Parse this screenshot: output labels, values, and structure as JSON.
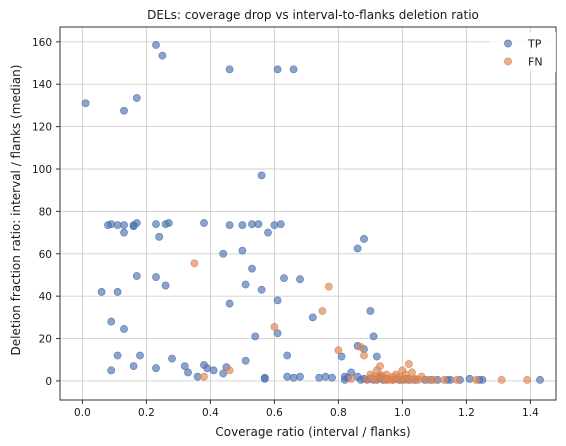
{
  "chart_data": {
    "type": "scatter",
    "title": "DELs: coverage drop vs interval-to-flanks deletion ratio",
    "xlabel": "Coverage ratio (interval / flanks)",
    "ylabel": "Deletion fraction ratio: interval / flanks (median)",
    "xlim": [
      -0.07,
      1.48
    ],
    "ylim": [
      -9,
      167
    ],
    "xticks": [
      0.0,
      0.2,
      0.4,
      0.6,
      0.8,
      1.0,
      1.2,
      1.4
    ],
    "xtick_labels": [
      "0.0",
      "0.2",
      "0.4",
      "0.6",
      "0.8",
      "1.0",
      "1.2",
      "1.4"
    ],
    "yticks": [
      0,
      20,
      40,
      60,
      80,
      100,
      120,
      140,
      160
    ],
    "ytick_labels": [
      "0",
      "20",
      "40",
      "60",
      "80",
      "100",
      "120",
      "140",
      "160"
    ],
    "grid": true,
    "legend_position": "top-right",
    "series": [
      {
        "name": "TP",
        "color": "#4c72b0",
        "points": [
          [
            0.01,
            131
          ],
          [
            0.06,
            42
          ],
          [
            0.08,
            73.5
          ],
          [
            0.09,
            74
          ],
          [
            0.09,
            28
          ],
          [
            0.09,
            5
          ],
          [
            0.11,
            73.5
          ],
          [
            0.11,
            42
          ],
          [
            0.11,
            12
          ],
          [
            0.13,
            127.5
          ],
          [
            0.13,
            73.5
          ],
          [
            0.13,
            70
          ],
          [
            0.13,
            24.5
          ],
          [
            0.16,
            73.5
          ],
          [
            0.16,
            73
          ],
          [
            0.16,
            7
          ],
          [
            0.17,
            133.5
          ],
          [
            0.17,
            74.5
          ],
          [
            0.17,
            49.5
          ],
          [
            0.18,
            12
          ],
          [
            0.23,
            158.5
          ],
          [
            0.23,
            74
          ],
          [
            0.23,
            49
          ],
          [
            0.23,
            6
          ],
          [
            0.24,
            68
          ],
          [
            0.25,
            153.5
          ],
          [
            0.26,
            45
          ],
          [
            0.26,
            74
          ],
          [
            0.27,
            74.5
          ],
          [
            0.28,
            10.5
          ],
          [
            0.32,
            7
          ],
          [
            0.33,
            4
          ],
          [
            0.36,
            2
          ],
          [
            0.38,
            74.5
          ],
          [
            0.38,
            7.5
          ],
          [
            0.39,
            6
          ],
          [
            0.41,
            5
          ],
          [
            0.44,
            60
          ],
          [
            0.44,
            3.5
          ],
          [
            0.45,
            6.5
          ],
          [
            0.46,
            147
          ],
          [
            0.46,
            73.5
          ],
          [
            0.46,
            36.5
          ],
          [
            0.5,
            73.5
          ],
          [
            0.5,
            61.5
          ],
          [
            0.51,
            45.5
          ],
          [
            0.51,
            9.5
          ],
          [
            0.53,
            53
          ],
          [
            0.53,
            74
          ],
          [
            0.54,
            21
          ],
          [
            0.55,
            74
          ],
          [
            0.56,
            97
          ],
          [
            0.56,
            43
          ],
          [
            0.57,
            1.5
          ],
          [
            0.57,
            1
          ],
          [
            0.58,
            70
          ],
          [
            0.6,
            73.5
          ],
          [
            0.61,
            147
          ],
          [
            0.61,
            38
          ],
          [
            0.61,
            22.5
          ],
          [
            0.62,
            74
          ],
          [
            0.63,
            48.5
          ],
          [
            0.64,
            2
          ],
          [
            0.64,
            12
          ],
          [
            0.66,
            147
          ],
          [
            0.66,
            1.5
          ],
          [
            0.68,
            48
          ],
          [
            0.68,
            2
          ],
          [
            0.72,
            30
          ],
          [
            0.74,
            1.5
          ],
          [
            0.76,
            2
          ],
          [
            0.78,
            1.5
          ],
          [
            0.81,
            11.5
          ],
          [
            0.82,
            2
          ],
          [
            0.82,
            0.5
          ],
          [
            0.83,
            1.5
          ],
          [
            0.84,
            4
          ],
          [
            0.86,
            62.5
          ],
          [
            0.86,
            16.5
          ],
          [
            0.86,
            2
          ],
          [
            0.87,
            0.5
          ],
          [
            0.88,
            67
          ],
          [
            0.88,
            1
          ],
          [
            0.88,
            15
          ],
          [
            0.89,
            0.5
          ],
          [
            0.9,
            33
          ],
          [
            0.9,
            1
          ],
          [
            0.91,
            21
          ],
          [
            0.91,
            0.5
          ],
          [
            0.92,
            0.5
          ],
          [
            0.92,
            11.5
          ],
          [
            0.93,
            1.5
          ],
          [
            0.93,
            2
          ],
          [
            0.94,
            0.5
          ],
          [
            0.95,
            1
          ],
          [
            0.95,
            0.5
          ],
          [
            0.97,
            0.5
          ],
          [
            0.98,
            1
          ],
          [
            0.99,
            0.5
          ],
          [
            1.0,
            0.5
          ],
          [
            1.01,
            1
          ],
          [
            1.02,
            0.5
          ],
          [
            1.04,
            0.5
          ],
          [
            1.07,
            0.5
          ],
          [
            1.09,
            0.5
          ],
          [
            1.11,
            0.5
          ],
          [
            1.14,
            0.5
          ],
          [
            1.15,
            0.5
          ],
          [
            1.18,
            0.5
          ],
          [
            1.21,
            1
          ],
          [
            1.24,
            0.5
          ],
          [
            1.25,
            0.5
          ],
          [
            1.43,
            0.5
          ]
        ]
      },
      {
        "name": "FN",
        "color": "#dd8452",
        "points": [
          [
            0.35,
            55.5
          ],
          [
            0.38,
            2
          ],
          [
            0.46,
            5
          ],
          [
            0.6,
            25.5
          ],
          [
            0.75,
            33
          ],
          [
            0.77,
            44.5
          ],
          [
            0.8,
            14.5
          ],
          [
            0.84,
            1
          ],
          [
            0.87,
            16
          ],
          [
            0.88,
            12
          ],
          [
            0.89,
            0.5
          ],
          [
            0.9,
            3
          ],
          [
            0.91,
            2
          ],
          [
            0.91,
            1
          ],
          [
            0.92,
            5
          ],
          [
            0.92,
            0.5
          ],
          [
            0.93,
            7
          ],
          [
            0.93,
            3
          ],
          [
            0.94,
            1
          ],
          [
            0.94,
            2
          ],
          [
            0.95,
            0.5
          ],
          [
            0.95,
            3
          ],
          [
            0.96,
            1
          ],
          [
            0.96,
            0.5
          ],
          [
            0.97,
            2
          ],
          [
            0.97,
            0.5
          ],
          [
            0.98,
            1
          ],
          [
            0.98,
            3
          ],
          [
            0.99,
            0.5
          ],
          [
            0.99,
            2
          ],
          [
            1.0,
            5
          ],
          [
            1.0,
            1
          ],
          [
            1.01,
            0.5
          ],
          [
            1.01,
            3
          ],
          [
            1.02,
            1
          ],
          [
            1.02,
            8
          ],
          [
            1.03,
            0.5
          ],
          [
            1.03,
            4
          ],
          [
            1.04,
            1
          ],
          [
            1.05,
            0.5
          ],
          [
            1.06,
            2
          ],
          [
            1.08,
            0.5
          ],
          [
            1.1,
            0.5
          ],
          [
            1.13,
            0.5
          ],
          [
            1.17,
            0.5
          ],
          [
            1.23,
            0.5
          ],
          [
            1.31,
            0.5
          ],
          [
            1.39,
            0.5
          ]
        ]
      }
    ]
  }
}
